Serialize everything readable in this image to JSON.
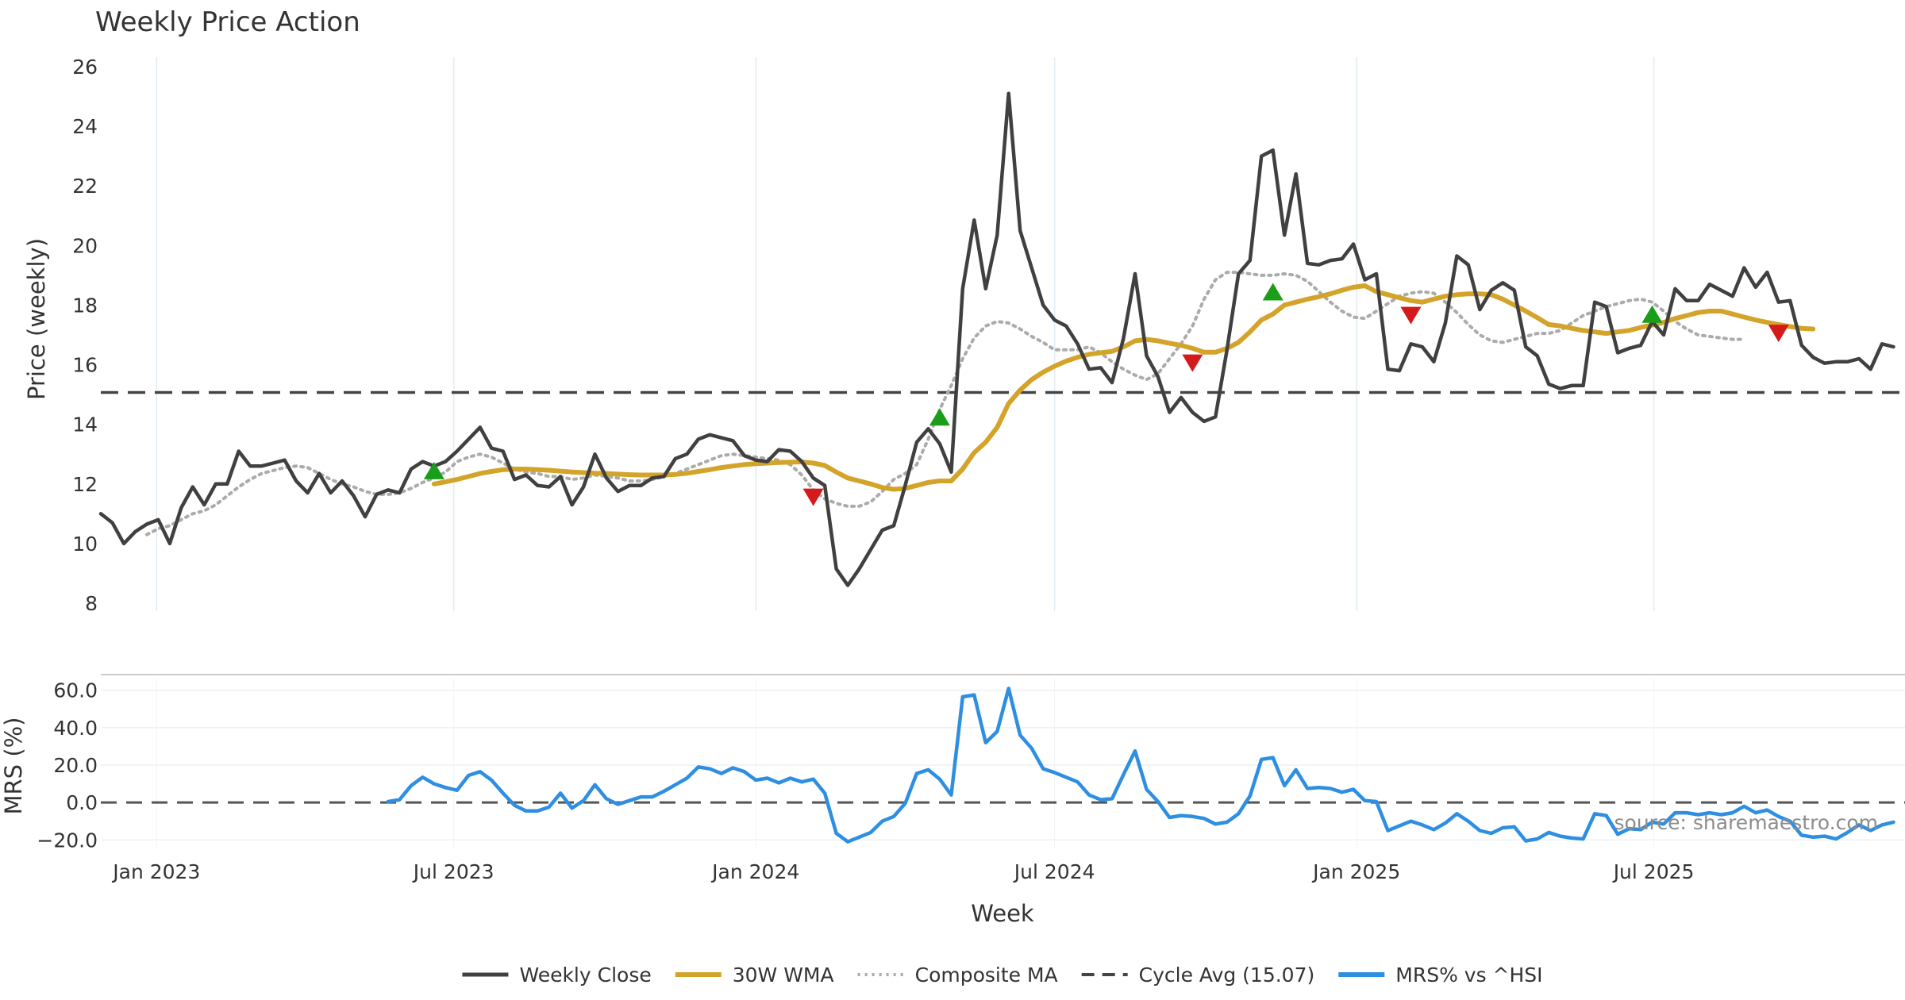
{
  "chart_data": {
    "type": "line",
    "title": "Weekly Price Action",
    "xlabel": "Week",
    "x_ticks": [
      "Jan 2023",
      "Jul 2023",
      "Jan 2024",
      "Jul 2024",
      "Jan 2025",
      "Jul 2025"
    ],
    "x_range": [
      "2022-11-28",
      "2025-12-01"
    ],
    "watermark": "source: sharemaestro.com",
    "price_panel": {
      "ylabel": "Price (weekly)",
      "ylim": [
        8,
        26
      ],
      "yticks": [
        8,
        10,
        12,
        14,
        16,
        18,
        20,
        22,
        24,
        26
      ],
      "grid": "vertical",
      "series": [
        {
          "name": "Weekly Close",
          "color": "#404040",
          "style": "solid",
          "start_week": 0,
          "values": [
            11.0,
            10.7,
            10.0,
            10.4,
            10.65,
            10.8,
            10.0,
            11.2,
            11.9,
            11.3,
            12.0,
            12.0,
            13.1,
            12.6,
            12.6,
            12.7,
            12.8,
            12.1,
            11.7,
            12.35,
            11.7,
            12.1,
            11.6,
            10.9,
            11.65,
            11.8,
            11.7,
            12.5,
            12.75,
            12.6,
            12.75,
            13.1,
            13.5,
            13.9,
            13.2,
            13.1,
            12.15,
            12.3,
            11.95,
            11.9,
            12.25,
            11.3,
            11.9,
            13.0,
            12.2,
            11.75,
            11.95,
            11.95,
            12.2,
            12.25,
            12.85,
            13.0,
            13.5,
            13.65,
            13.55,
            13.45,
            12.95,
            12.8,
            12.75,
            13.15,
            13.1,
            12.75,
            12.2,
            11.95,
            9.15,
            8.6,
            9.15,
            9.8,
            10.45,
            10.6,
            11.95,
            13.4,
            13.85,
            13.35,
            12.4,
            18.55,
            20.85,
            18.55,
            20.35,
            25.1,
            20.5,
            19.25,
            18.0,
            17.5,
            17.3,
            16.7,
            15.85,
            15.9,
            15.4,
            16.9,
            19.05,
            16.3,
            15.6,
            14.4,
            14.9,
            14.4,
            14.1,
            14.25,
            16.5,
            19.05,
            19.5,
            23.0,
            23.2,
            20.35,
            22.4,
            19.4,
            19.35,
            19.5,
            19.55,
            20.05,
            18.85,
            19.05,
            15.85,
            15.8,
            16.7,
            16.6,
            16.1,
            17.4,
            19.65,
            19.35,
            17.85,
            18.5,
            18.75,
            18.5,
            16.6,
            16.3,
            15.35,
            15.2,
            15.3,
            15.3,
            18.1,
            17.95,
            16.4,
            16.55,
            16.65,
            17.45,
            17.0,
            18.55,
            18.15,
            18.15,
            18.7,
            18.5,
            18.3,
            19.25,
            18.6,
            19.1,
            18.1,
            18.15,
            16.65,
            16.25,
            16.05,
            16.1,
            16.1,
            16.2,
            15.85,
            16.7,
            16.6
          ]
        },
        {
          "name": "30W WMA",
          "color": "#D4A32A",
          "style": "solid",
          "start_week": 29,
          "values": [
            12.0,
            12.07,
            12.15,
            12.25,
            12.35,
            12.42,
            12.48,
            12.5,
            12.5,
            12.48,
            12.46,
            12.43,
            12.4,
            12.38,
            12.36,
            12.35,
            12.33,
            12.31,
            12.3,
            12.3,
            12.3,
            12.32,
            12.36,
            12.42,
            12.48,
            12.55,
            12.6,
            12.65,
            12.68,
            12.7,
            12.72,
            12.73,
            12.74,
            12.7,
            12.62,
            12.4,
            12.2,
            12.1,
            12.0,
            11.88,
            11.82,
            11.85,
            11.95,
            12.05,
            12.1,
            12.1,
            12.5,
            13.05,
            13.4,
            13.9,
            14.7,
            15.15,
            15.5,
            15.75,
            15.95,
            16.12,
            16.25,
            16.35,
            16.4,
            16.45,
            16.6,
            16.8,
            16.85,
            16.8,
            16.72,
            16.65,
            16.55,
            16.42,
            16.42,
            16.55,
            16.75,
            17.1,
            17.5,
            17.7,
            18.0,
            18.1,
            18.2,
            18.28,
            18.38,
            18.5,
            18.6,
            18.65,
            18.45,
            18.35,
            18.25,
            18.15,
            18.1,
            18.2,
            18.3,
            18.35,
            18.38,
            18.38,
            18.35,
            18.2,
            18.0,
            17.8,
            17.58,
            17.35,
            17.3,
            17.22,
            17.15,
            17.1,
            17.05,
            17.1,
            17.15,
            17.25,
            17.33,
            17.42,
            17.55,
            17.65,
            17.75,
            17.8,
            17.8,
            17.7,
            17.6,
            17.5,
            17.42,
            17.35,
            17.28,
            17.22,
            17.2
          ]
        },
        {
          "name": "Composite MA",
          "color": "#ABABAB",
          "style": "dotted",
          "start_week": 4,
          "values": [
            10.3,
            10.5,
            10.6,
            10.8,
            11.0,
            11.1,
            11.3,
            11.6,
            11.9,
            12.15,
            12.35,
            12.45,
            12.55,
            12.6,
            12.55,
            12.35,
            12.15,
            12.0,
            11.9,
            11.75,
            11.65,
            11.65,
            11.7,
            11.85,
            12.05,
            12.2,
            12.4,
            12.75,
            12.9,
            13.0,
            12.9,
            12.7,
            12.5,
            12.4,
            12.35,
            12.25,
            12.25,
            12.15,
            12.2,
            12.3,
            12.25,
            12.2,
            12.1,
            12.1,
            12.15,
            12.25,
            12.35,
            12.5,
            12.65,
            12.8,
            12.95,
            13.0,
            12.95,
            12.9,
            12.85,
            12.8,
            12.65,
            12.3,
            11.8,
            11.5,
            11.35,
            11.25,
            11.25,
            11.4,
            11.75,
            12.15,
            12.35,
            12.65,
            13.5,
            14.5,
            15.3,
            16.2,
            16.9,
            17.3,
            17.45,
            17.4,
            17.2,
            16.95,
            16.75,
            16.5,
            16.5,
            16.5,
            16.6,
            16.4,
            16.1,
            15.85,
            15.65,
            15.5,
            15.7,
            16.2,
            16.7,
            17.3,
            18.2,
            18.85,
            19.1,
            19.1,
            19.05,
            19.0,
            19.0,
            19.05,
            19.0,
            18.8,
            18.45,
            18.1,
            17.8,
            17.6,
            17.55,
            17.8,
            18.05,
            18.3,
            18.4,
            18.45,
            18.4,
            18.1,
            17.75,
            17.35,
            17.0,
            16.8,
            16.75,
            16.85,
            16.95,
            17.05,
            17.05,
            17.15,
            17.4,
            17.65,
            17.8,
            17.95,
            18.05,
            18.15,
            18.2,
            18.1,
            17.8,
            17.45,
            17.2,
            17.0,
            16.95,
            16.9,
            16.85,
            16.85
          ]
        },
        {
          "name": "Cycle Avg (15.07)",
          "color": "#444444",
          "style": "dashed",
          "value": 15.07
        }
      ],
      "markers": [
        {
          "type": "buy",
          "week": 29,
          "value": 12.45
        },
        {
          "type": "sell",
          "week": 62,
          "value": 11.55
        },
        {
          "type": "buy",
          "week": 73,
          "value": 14.25
        },
        {
          "type": "sell",
          "week": 95,
          "value": 16.05
        },
        {
          "type": "buy",
          "week": 102,
          "value": 18.45
        },
        {
          "type": "sell",
          "week": 114,
          "value": 17.65
        },
        {
          "type": "buy",
          "week": 135,
          "value": 17.7
        },
        {
          "type": "sell",
          "week": 146,
          "value": 17.05
        }
      ]
    },
    "mrs_panel": {
      "ylabel": "MRS (%)",
      "ylim": [
        -22,
        62
      ],
      "yticks": [
        "-20.0",
        "0.0",
        "20.0",
        "40.0",
        "60.0"
      ],
      "zero_line": 0,
      "series": [
        {
          "name": "MRS% vs ^HSI",
          "color": "#2E8FE2",
          "style": "solid",
          "start_week": 25,
          "values": [
            0.5,
            1.5,
            9.0,
            13.5,
            10.0,
            8.0,
            6.5,
            14.5,
            16.5,
            12.0,
            5.0,
            -1.5,
            -4.5,
            -4.5,
            -2.5,
            5.0,
            -3.0,
            1.0,
            9.5,
            2.0,
            -1.0,
            1.0,
            3.0,
            3.0,
            6.0,
            9.5,
            13.0,
            19.0,
            18.0,
            15.5,
            18.5,
            16.5,
            12.0,
            13.0,
            10.5,
            13.0,
            11.0,
            12.5,
            5.0,
            -16.5,
            -21.0,
            -18.5,
            -16.0,
            -10.0,
            -7.5,
            -0.5,
            15.5,
            17.5,
            12.5,
            4.0,
            56.5,
            57.5,
            32.0,
            38.0,
            61.0,
            36.0,
            29.0,
            18.0,
            16.0,
            13.5,
            11.0,
            4.0,
            1.5,
            2.0,
            15.0,
            27.5,
            7.0,
            0.5,
            -8.0,
            -7.0,
            -7.5,
            -8.5,
            -11.5,
            -10.5,
            -6.0,
            3.5,
            23.0,
            24.0,
            9.0,
            17.5,
            7.5,
            8.0,
            7.5,
            5.5,
            7.0,
            1.0,
            0.5,
            -15.0,
            -12.5,
            -10.0,
            -12.0,
            -14.5,
            -11.0,
            -6.0,
            -10.0,
            -15.0,
            -16.5,
            -13.5,
            -13.0,
            -20.5,
            -19.5,
            -16.0,
            -18.0,
            -19.0,
            -19.5,
            -6.0,
            -7.0,
            -17.0,
            -14.0,
            -14.5,
            -10.5,
            -11.5,
            -5.5,
            -5.5,
            -6.5,
            -5.5,
            -6.5,
            -5.5,
            -2.0,
            -5.5,
            -4.0,
            -7.5,
            -10.0,
            -17.5,
            -18.5,
            -18.0,
            -19.5,
            -16.0,
            -12.0,
            -15.0,
            -12.0,
            -10.5
          ]
        }
      ]
    },
    "legend": {
      "placement": "bottom-center",
      "entries": [
        "Weekly Close",
        "30W WMA",
        "Composite MA",
        "Cycle Avg (15.07)",
        "MRS% vs ^HSI"
      ]
    }
  }
}
